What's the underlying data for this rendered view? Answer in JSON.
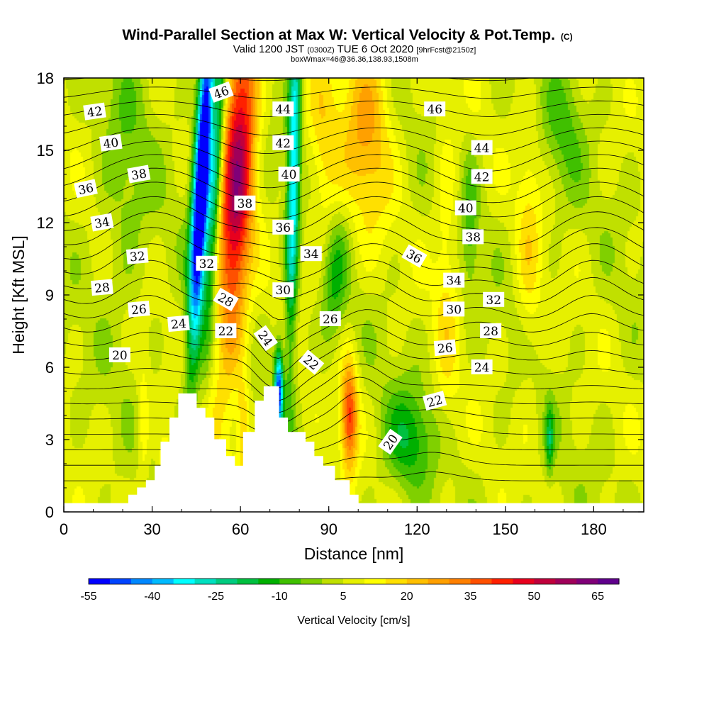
{
  "chart_data": {
    "type": "heatmap",
    "title": "Wind-Parallel Section at Max W: Vertical Velocity & Pot.Temp.",
    "title_mark": "(C)",
    "subtitle": {
      "part1": "Valid 1200 JST ",
      "part2": "(0300Z)",
      "part3": " TUE 6 Oct 2020 ",
      "part4": "[9hrFcst@2150z]"
    },
    "subtitle2": "boxWmax=46@36.36,138.93,1508m",
    "xlabel": "Distance [nm]",
    "ylabel": "Height [Kft MSL]",
    "xlim": [
      0,
      197
    ],
    "ylim": [
      0,
      18
    ],
    "xticks": [
      "0",
      "30",
      "60",
      "90",
      "120",
      "150",
      "180"
    ],
    "yticks": [
      "0",
      "3",
      "6",
      "9",
      "12",
      "15",
      "18"
    ],
    "colorbar": {
      "label": "Vertical Velocity [cm/s]",
      "ticks": [
        "-55",
        "-40",
        "-25",
        "-10",
        "5",
        "20",
        "35",
        "50",
        "65"
      ],
      "range": [
        -55,
        70
      ],
      "colors": [
        "#0000ff",
        "#0044ff",
        "#0088ff",
        "#00bbff",
        "#00ffff",
        "#00e0c0",
        "#00cc80",
        "#00c040",
        "#00b000",
        "#40c000",
        "#80d000",
        "#c0e000",
        "#e6f000",
        "#ffff00",
        "#ffe000",
        "#ffc000",
        "#ffa000",
        "#ff8000",
        "#ff5000",
        "#ff2000",
        "#e8001e",
        "#c0003c",
        "#a0005a",
        "#800078",
        "#60008c"
      ]
    },
    "background_w": 5,
    "w_features": [
      {
        "x": 47,
        "y": 14,
        "sx": 2.0,
        "sy": 5.0,
        "amp": -80,
        "slant": 0.42
      },
      {
        "x": 59,
        "y": 14,
        "sx": 4.0,
        "sy": 5.5,
        "amp": 50,
        "slant": 0.4
      },
      {
        "x": 52,
        "y": 14.5,
        "sx": 1.5,
        "sy": 5.0,
        "amp": -30,
        "slant": 0.42
      },
      {
        "x": 78,
        "y": 14,
        "sx": 1.5,
        "sy": 5.5,
        "amp": -40,
        "slant": 0.15
      },
      {
        "x": 73,
        "y": 5,
        "sx": 1.0,
        "sy": 1.2,
        "amp": -55,
        "slant": 0
      },
      {
        "x": 103,
        "y": 16,
        "sx": 6.0,
        "sy": 3.0,
        "amp": 20,
        "slant": 0
      },
      {
        "x": 88,
        "y": 15,
        "sx": 4.0,
        "sy": 3.0,
        "amp": 12,
        "slant": 0
      },
      {
        "x": 97,
        "y": 4,
        "sx": 2.0,
        "sy": 1.6,
        "amp": 35,
        "slant": 0
      },
      {
        "x": 92,
        "y": 9.5,
        "sx": 3.0,
        "sy": 2.0,
        "amp": -15,
        "slant": 0.5
      },
      {
        "x": 117,
        "y": 3,
        "sx": 6.0,
        "sy": 1.5,
        "amp": -18,
        "slant": 0
      },
      {
        "x": 138,
        "y": 12,
        "sx": 2.0,
        "sy": 2.0,
        "amp": -12,
        "slant": 0
      },
      {
        "x": 130,
        "y": 10,
        "sx": 3.0,
        "sy": 5.0,
        "amp": 10,
        "slant": 0
      },
      {
        "x": 158,
        "y": 11,
        "sx": 3.0,
        "sy": 4.0,
        "amp": 10,
        "slant": 0
      },
      {
        "x": 170,
        "y": 16,
        "sx": 5.0,
        "sy": 2.0,
        "amp": -10,
        "slant": 0
      },
      {
        "x": 21,
        "y": 14,
        "sx": 6.0,
        "sy": 4.0,
        "amp": -8,
        "slant": 0
      },
      {
        "x": 165,
        "y": 3,
        "sx": 1.0,
        "sy": 1.0,
        "amp": -20,
        "slant": 0
      },
      {
        "x": 27,
        "y": 3.5,
        "sx": 1.5,
        "sy": 2.0,
        "amp": 10,
        "slant": 0
      },
      {
        "x": 61,
        "y": 3.5,
        "sx": 1.5,
        "sy": 1.5,
        "amp": 15,
        "slant": 0
      },
      {
        "x": 35,
        "y": 1.5,
        "sx": 2.0,
        "sy": 1.0,
        "amp": 15,
        "slant": 0
      }
    ],
    "terrain": [
      [
        0,
        0.35
      ],
      [
        22,
        0.35
      ],
      [
        22,
        0.7
      ],
      [
        25,
        0.7
      ],
      [
        25,
        1.0
      ],
      [
        28,
        1.0
      ],
      [
        28,
        1.3
      ],
      [
        31,
        1.3
      ],
      [
        31,
        1.9
      ],
      [
        33,
        1.9
      ],
      [
        33,
        2.9
      ],
      [
        36,
        2.9
      ],
      [
        36,
        3.9
      ],
      [
        39,
        3.9
      ],
      [
        39,
        4.9
      ],
      [
        45,
        4.9
      ],
      [
        45,
        4.3
      ],
      [
        48,
        4.3
      ],
      [
        48,
        3.9
      ],
      [
        51,
        3.9
      ],
      [
        51,
        3.0
      ],
      [
        55,
        3.0
      ],
      [
        55,
        2.3
      ],
      [
        58,
        2.3
      ],
      [
        58,
        1.9
      ],
      [
        61,
        1.9
      ],
      [
        61,
        3.3
      ],
      [
        65,
        3.3
      ],
      [
        65,
        4.6
      ],
      [
        68,
        4.6
      ],
      [
        68,
        5.2
      ],
      [
        73,
        5.2
      ],
      [
        73,
        3.9
      ],
      [
        76,
        3.9
      ],
      [
        76,
        3.3
      ],
      [
        82,
        3.3
      ],
      [
        82,
        2.9
      ],
      [
        85,
        2.9
      ],
      [
        85,
        2.3
      ],
      [
        88,
        2.3
      ],
      [
        88,
        1.9
      ],
      [
        92,
        1.9
      ],
      [
        92,
        1.3
      ],
      [
        97,
        1.3
      ],
      [
        97,
        0.7
      ],
      [
        100,
        0.7
      ],
      [
        100,
        0.35
      ],
      [
        197,
        0.35
      ]
    ],
    "theta_levels": [
      20,
      21,
      22,
      23,
      24,
      25,
      26,
      27,
      28,
      29,
      30,
      31,
      32,
      33,
      34,
      35,
      36,
      37,
      38,
      39,
      40,
      41,
      42,
      43,
      44,
      45,
      46
    ],
    "theta_labels": [
      {
        "text": "42",
        "x": 10.5,
        "y": 16.6,
        "rot": -8
      },
      {
        "text": "40",
        "x": 16,
        "y": 15.3,
        "rot": -8
      },
      {
        "text": "38",
        "x": 25.5,
        "y": 14.0,
        "rot": -10
      },
      {
        "text": "36",
        "x": 7.5,
        "y": 13.4,
        "rot": -12
      },
      {
        "text": "34",
        "x": 13,
        "y": 12.0,
        "rot": -10
      },
      {
        "text": "32",
        "x": 25,
        "y": 10.6,
        "rot": -5
      },
      {
        "text": "28",
        "x": 13,
        "y": 9.3,
        "rot": -5
      },
      {
        "text": "26",
        "x": 25.5,
        "y": 8.4,
        "rot": -5
      },
      {
        "text": "24",
        "x": 39,
        "y": 7.8,
        "rot": -5
      },
      {
        "text": "20",
        "x": 19,
        "y": 6.5,
        "rot": 0
      },
      {
        "text": "46",
        "x": 53.5,
        "y": 17.4,
        "rot": -20
      },
      {
        "text": "44",
        "x": 74.5,
        "y": 16.7,
        "rot": 0
      },
      {
        "text": "42",
        "x": 74.5,
        "y": 15.3,
        "rot": 0
      },
      {
        "text": "40",
        "x": 76.5,
        "y": 14.0,
        "rot": 0
      },
      {
        "text": "38",
        "x": 61.5,
        "y": 12.8,
        "rot": 0
      },
      {
        "text": "36",
        "x": 74.5,
        "y": 11.8,
        "rot": 0
      },
      {
        "text": "34",
        "x": 84,
        "y": 10.7,
        "rot": 0
      },
      {
        "text": "32",
        "x": 48.5,
        "y": 10.3,
        "rot": 0
      },
      {
        "text": "30",
        "x": 74.5,
        "y": 9.2,
        "rot": 0
      },
      {
        "text": "28",
        "x": 55,
        "y": 8.8,
        "rot": 30
      },
      {
        "text": "26",
        "x": 90.5,
        "y": 8.0,
        "rot": 0
      },
      {
        "text": "24",
        "x": 68.5,
        "y": 7.2,
        "rot": 55
      },
      {
        "text": "22",
        "x": 55,
        "y": 7.5,
        "rot": 0
      },
      {
        "text": "22",
        "x": 84,
        "y": 6.2,
        "rot": 40
      },
      {
        "text": "46",
        "x": 126,
        "y": 16.7,
        "rot": 0
      },
      {
        "text": "44",
        "x": 142,
        "y": 15.1,
        "rot": 0
      },
      {
        "text": "42",
        "x": 142,
        "y": 13.9,
        "rot": 0
      },
      {
        "text": "40",
        "x": 136.5,
        "y": 12.6,
        "rot": 0
      },
      {
        "text": "38",
        "x": 139,
        "y": 11.4,
        "rot": 0
      },
      {
        "text": "36",
        "x": 119,
        "y": 10.6,
        "rot": 30
      },
      {
        "text": "34",
        "x": 132.5,
        "y": 9.6,
        "rot": 0
      },
      {
        "text": "32",
        "x": 146,
        "y": 8.8,
        "rot": 0
      },
      {
        "text": "30",
        "x": 132.5,
        "y": 8.4,
        "rot": 0
      },
      {
        "text": "28",
        "x": 145,
        "y": 7.5,
        "rot": 0
      },
      {
        "text": "26",
        "x": 129.5,
        "y": 6.8,
        "rot": -5
      },
      {
        "text": "24",
        "x": 142,
        "y": 6.0,
        "rot": 0
      },
      {
        "text": "22",
        "x": 126,
        "y": 4.6,
        "rot": -15
      },
      {
        "text": "20",
        "x": 111,
        "y": 2.9,
        "rot": -55
      }
    ]
  }
}
